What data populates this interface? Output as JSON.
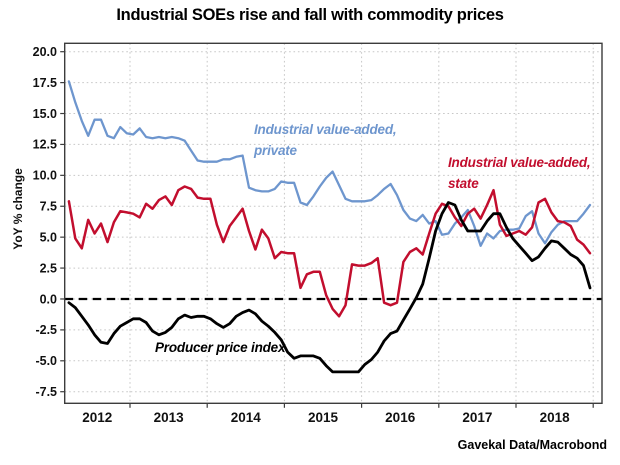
{
  "title": "Industrial SOEs rise and fall with commodity prices",
  "source": "Gavekal Data/Macrobond",
  "chart_data": {
    "type": "line",
    "title": "Industrial SOEs rise and fall with commodity prices",
    "ylabel": "YoY % change",
    "ylim": [
      -7.5,
      20.0
    ],
    "ytick_step": 2.5,
    "x_start": "2012-03",
    "freq": "monthly",
    "x_axis_years": [
      "2012",
      "2013",
      "2014",
      "2015",
      "2016",
      "2017",
      "2018"
    ],
    "grid": true,
    "zero_line": "dashed-black",
    "legend_position": "inline-annotations",
    "series": [
      {
        "id": "private",
        "name": "Industrial value-added, private",
        "label_lines": [
          "Industrial value-added,",
          "private"
        ],
        "color": "#6e96ce",
        "values": [
          17.6,
          15.9,
          14.4,
          13.2,
          14.5,
          14.5,
          13.2,
          13.0,
          13.9,
          13.4,
          13.3,
          13.8,
          13.1,
          13.0,
          13.1,
          13.0,
          13.1,
          13.0,
          12.8,
          12.0,
          11.2,
          11.1,
          11.1,
          11.1,
          11.3,
          11.3,
          11.5,
          11.6,
          9.0,
          8.8,
          8.7,
          8.7,
          8.9,
          9.5,
          9.4,
          9.4,
          7.8,
          7.6,
          8.3,
          9.1,
          9.8,
          10.3,
          9.2,
          8.1,
          7.9,
          7.9,
          7.9,
          8.0,
          8.4,
          8.9,
          9.3,
          8.4,
          7.2,
          6.5,
          6.3,
          6.8,
          6.1,
          6.3,
          5.2,
          5.3,
          6.1,
          6.6,
          7.2,
          5.9,
          4.3,
          5.3,
          4.9,
          5.5,
          5.6,
          5.6,
          5.7,
          6.7,
          7.1,
          5.3,
          4.5,
          5.4,
          6.0,
          6.3,
          6.3,
          6.3,
          6.9,
          7.6
        ]
      },
      {
        "id": "state",
        "name": "Industrial value-added, state",
        "label_lines": [
          "Industrial value-added,",
          "state"
        ],
        "color": "#c20e2e",
        "values": [
          7.9,
          4.9,
          4.1,
          6.4,
          5.3,
          6.1,
          4.6,
          6.2,
          7.1,
          7.0,
          6.9,
          6.6,
          7.7,
          7.3,
          8.0,
          8.3,
          7.6,
          8.8,
          9.1,
          8.9,
          8.2,
          8.1,
          8.1,
          6.0,
          4.6,
          5.9,
          6.6,
          7.3,
          5.5,
          4.0,
          5.6,
          4.9,
          3.3,
          3.8,
          3.7,
          3.7,
          0.9,
          2.0,
          2.2,
          2.2,
          0.3,
          -0.8,
          -1.4,
          -0.5,
          2.8,
          2.7,
          2.7,
          2.9,
          3.3,
          -0.3,
          -0.5,
          -0.3,
          3.0,
          3.8,
          4.1,
          3.6,
          5.3,
          6.9,
          7.7,
          7.5,
          6.6,
          5.9,
          6.9,
          7.3,
          6.5,
          7.6,
          8.8,
          6.0,
          5.1,
          5.3,
          5.5,
          5.2,
          5.8,
          7.8,
          8.1,
          7.0,
          6.3,
          6.2,
          5.9,
          4.8,
          4.4,
          3.7
        ]
      },
      {
        "id": "ppi",
        "name": "Producer price index",
        "label_lines": [
          "Producer price index"
        ],
        "color": "#000000",
        "values": [
          -0.3,
          -0.7,
          -1.4,
          -2.1,
          -2.9,
          -3.5,
          -3.6,
          -2.8,
          -2.2,
          -1.9,
          -1.6,
          -1.6,
          -1.9,
          -2.6,
          -2.9,
          -2.7,
          -2.3,
          -1.6,
          -1.3,
          -1.5,
          -1.4,
          -1.4,
          -1.6,
          -2.0,
          -2.3,
          -2.0,
          -1.4,
          -1.1,
          -0.9,
          -1.2,
          -1.8,
          -2.2,
          -2.7,
          -3.3,
          -4.3,
          -4.8,
          -4.6,
          -4.6,
          -4.6,
          -4.8,
          -5.4,
          -5.9,
          -5.9,
          -5.9,
          -5.9,
          -5.9,
          -5.3,
          -4.9,
          -4.3,
          -3.4,
          -2.8,
          -2.6,
          -1.7,
          -0.8,
          0.1,
          1.2,
          3.3,
          5.5,
          6.9,
          7.8,
          7.6,
          6.4,
          5.5,
          5.5,
          5.5,
          6.3,
          6.9,
          6.9,
          5.8,
          4.9,
          4.3,
          3.7,
          3.1,
          3.4,
          4.1,
          4.7,
          4.6,
          4.1,
          3.6,
          3.3,
          2.7,
          0.9
        ]
      }
    ]
  }
}
